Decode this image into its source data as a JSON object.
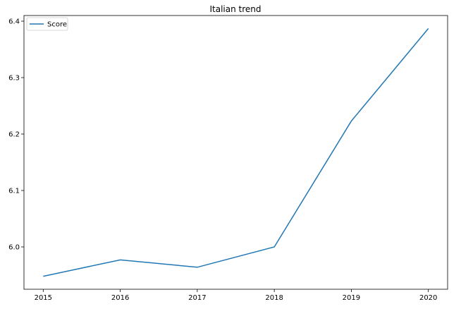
{
  "chart_data": {
    "type": "line",
    "title": "Italian trend",
    "xlabel": "",
    "ylabel": "",
    "x": [
      "2015",
      "2016",
      "2017",
      "2018",
      "2019",
      "2020"
    ],
    "series": [
      {
        "name": "Score",
        "values": [
          5.948,
          5.977,
          5.964,
          6.0,
          6.223,
          6.387
        ]
      }
    ],
    "xlim": [
      2014.75,
      2020.25
    ],
    "ylim": [
      5.925,
      6.41
    ],
    "y_ticks": [
      "6.0",
      "6.1",
      "6.2",
      "6.3",
      "6.4"
    ],
    "grid": false,
    "legend_position": "top-left",
    "colors": {
      "series": "#1f77b4",
      "axes": "#000000"
    }
  }
}
